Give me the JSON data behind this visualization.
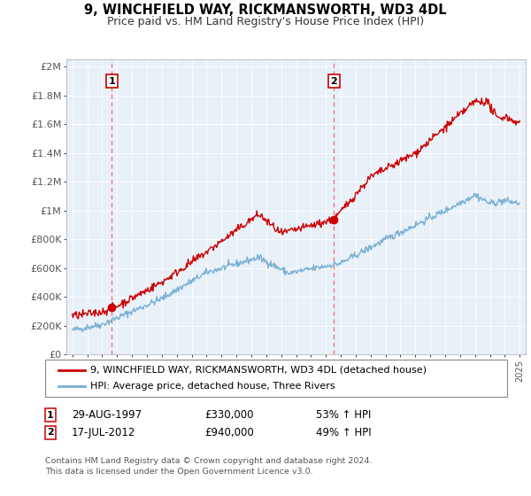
{
  "title": "9, WINCHFIELD WAY, RICKMANSWORTH, WD3 4DL",
  "subtitle": "Price paid vs. HM Land Registry's House Price Index (HPI)",
  "ylabel_ticks": [
    "£0",
    "£200K",
    "£400K",
    "£600K",
    "£800K",
    "£1M",
    "£1.2M",
    "£1.4M",
    "£1.6M",
    "£1.8M",
    "£2M"
  ],
  "ytick_values": [
    0,
    200000,
    400000,
    600000,
    800000,
    1000000,
    1200000,
    1400000,
    1600000,
    1800000,
    2000000
  ],
  "xlim_start": 1994.6,
  "xlim_end": 2025.4,
  "ylim_top": 2050000,
  "ylim_bottom": 0,
  "legend_line1": "9, WINCHFIELD WAY, RICKMANSWORTH, WD3 4DL (detached house)",
  "legend_line2": "HPI: Average price, detached house, Three Rivers",
  "annotation1_num": "1",
  "annotation1_date": "29-AUG-1997",
  "annotation1_price": "£330,000",
  "annotation1_hpi": "53% ↑ HPI",
  "annotation2_num": "2",
  "annotation2_date": "17-JUL-2012",
  "annotation2_price": "£940,000",
  "annotation2_hpi": "49% ↑ HPI",
  "footnote1": "Contains HM Land Registry data © Crown copyright and database right 2024.",
  "footnote2": "This data is licensed under the Open Government Licence v3.0.",
  "sale_color": "#cc0000",
  "hpi_color": "#7ab0d4",
  "vline_color": "#e87070",
  "background_color": "#ffffff",
  "plot_bg_color": "#e8f0f8",
  "grid_color": "#ffffff",
  "sale1_year": 1997.65,
  "sale2_year": 2012.54,
  "sale1_price": 330000,
  "sale2_price": 940000
}
